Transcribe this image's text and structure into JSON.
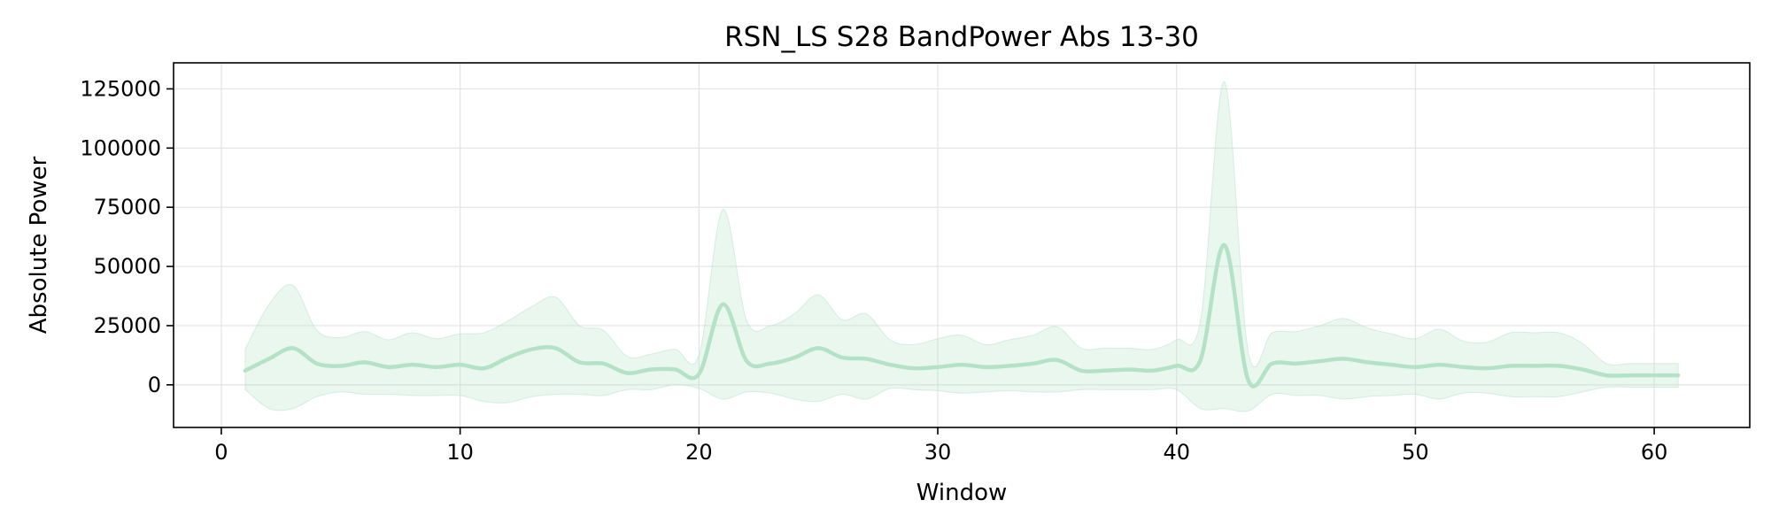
{
  "chart_data": {
    "type": "line",
    "title": "RSN_LS S28 BandPower Abs 13-30",
    "xlabel": "Window",
    "ylabel": "Absolute Power",
    "xlim": [
      -2,
      64
    ],
    "ylim": [
      -18000,
      136000
    ],
    "x_ticks": [
      0,
      10,
      20,
      30,
      40,
      50,
      60
    ],
    "y_ticks": [
      0,
      25000,
      50000,
      75000,
      100000,
      125000
    ],
    "grid": true,
    "colors": {
      "line": "#b3e2c7",
      "band": "#b3e2c7"
    },
    "series": [
      {
        "x": [
          1,
          2,
          3,
          4,
          5,
          6,
          7,
          8,
          9,
          10,
          11,
          12,
          13,
          14,
          15,
          16,
          17,
          18,
          19,
          20,
          21,
          22,
          23,
          24,
          25,
          26,
          27,
          28,
          29,
          30,
          31,
          32,
          33,
          34,
          35,
          36,
          37,
          38,
          39,
          40,
          41,
          42,
          43,
          44,
          45,
          46,
          47,
          48,
          49,
          50,
          51,
          52,
          53,
          54,
          55,
          56,
          57,
          58,
          59,
          60,
          61
        ],
        "mean": [
          6000,
          11000,
          15500,
          9000,
          8000,
          9500,
          7500,
          8500,
          7500,
          8500,
          7000,
          11500,
          15000,
          15500,
          9500,
          9000,
          5000,
          6500,
          6500,
          4500,
          34000,
          10000,
          9000,
          11500,
          15500,
          11500,
          11000,
          8500,
          7000,
          7500,
          8500,
          7500,
          8000,
          9000,
          10500,
          6000,
          6000,
          6500,
          6000,
          8000,
          10500,
          59000,
          2000,
          9000,
          9000,
          10000,
          11000,
          9500,
          8500,
          7500,
          8500,
          7500,
          7000,
          8000,
          8000,
          8000,
          6500,
          4000,
          4000,
          4000,
          4000
        ],
        "upper": [
          15000,
          34000,
          42000,
          23000,
          20000,
          22500,
          19000,
          22000,
          19500,
          21500,
          22000,
          27000,
          33000,
          37000,
          25000,
          23000,
          12000,
          13000,
          15000,
          12500,
          74000,
          27000,
          25000,
          30000,
          38000,
          27500,
          30000,
          19000,
          17000,
          19500,
          21000,
          17000,
          19000,
          21000,
          24500,
          15500,
          15500,
          15500,
          15000,
          19000,
          27000,
          128000,
          14000,
          22000,
          22500,
          25000,
          28000,
          24000,
          21500,
          19500,
          23500,
          18500,
          18000,
          22000,
          22000,
          22000,
          17500,
          9000,
          9000,
          9000,
          9000
        ],
        "lower": [
          -2000,
          -10000,
          -10000,
          -5000,
          -3000,
          -4000,
          -4000,
          -4500,
          -4500,
          -4500,
          -7000,
          -7500,
          -5000,
          -4000,
          -4000,
          -4500,
          -2000,
          -2000,
          0,
          -1500,
          -6000,
          -3000,
          -3500,
          -6000,
          -7000,
          -4000,
          -6000,
          -1500,
          -2000,
          -2500,
          -3500,
          -3000,
          -2500,
          -3000,
          -3000,
          -2000,
          -2000,
          -2000,
          -2000,
          -2000,
          -10000,
          -10000,
          -11000,
          -4000,
          -4500,
          -4500,
          -6000,
          -5000,
          -4500,
          -4000,
          -6000,
          -3500,
          -3500,
          -5000,
          -5000,
          -5000,
          -3000,
          -1000,
          -1000,
          -1000,
          -1000
        ]
      }
    ]
  }
}
